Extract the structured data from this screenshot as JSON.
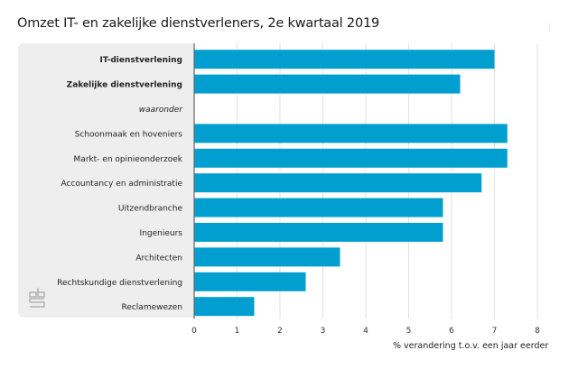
{
  "header": {
    "title": "Omzet IT- en zakelijke dienstverleners, 2e kwartaal 2019",
    "menu_icon": "vertical-dots-icon"
  },
  "branding": {
    "logo": "cbs-logo-icon"
  },
  "colors": {
    "bar": "#009fcf",
    "panel": "#eeeeee",
    "grid": "#e2e2e2",
    "axis": "#666666"
  },
  "chart_data": {
    "type": "bar",
    "orientation": "horizontal",
    "title": "Omzet IT- en zakelijke dienstverleners, 2e kwartaal 2019",
    "xlabel": "% verandering t.o.v. een jaar eerder",
    "ylabel": "",
    "xlim": [
      0,
      8
    ],
    "xticks": [
      0,
      1,
      2,
      3,
      4,
      5,
      6,
      7,
      8
    ],
    "grid": true,
    "categories": [
      {
        "label": "IT-dienstverlening",
        "value": 7.0,
        "style": "bold"
      },
      {
        "label": "Zakelijke dienstverlening",
        "value": 6.2,
        "style": "bold"
      },
      {
        "label": "waaronder",
        "value": null,
        "style": "italic"
      },
      {
        "label": "Schoonmaak en hoveniers",
        "value": 7.3,
        "style": "normal"
      },
      {
        "label": "Markt- en opinieonderzoek",
        "value": 7.3,
        "style": "normal"
      },
      {
        "label": "Accountancy en administratie",
        "value": 6.7,
        "style": "normal"
      },
      {
        "label": "Uitzendbranche",
        "value": 5.8,
        "style": "normal"
      },
      {
        "label": "Ingenieurs",
        "value": 5.8,
        "style": "normal"
      },
      {
        "label": "Architecten",
        "value": 3.4,
        "style": "normal"
      },
      {
        "label": "Rechtskundige dienstverlening",
        "value": 2.6,
        "style": "normal"
      },
      {
        "label": "Reclamewezen",
        "value": 1.4,
        "style": "normal"
      }
    ]
  }
}
